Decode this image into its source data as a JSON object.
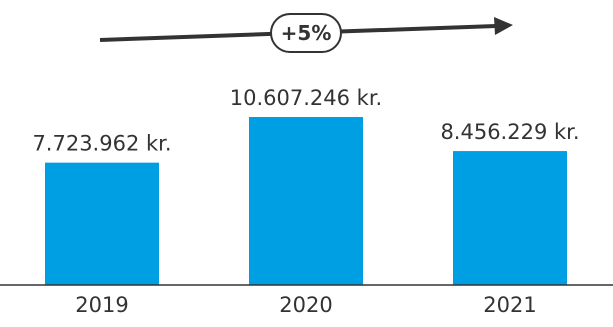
{
  "chart_data": {
    "type": "bar",
    "categories": [
      "2019",
      "2020",
      "2021"
    ],
    "values": [
      7723962,
      10607246,
      8456229
    ],
    "data_labels": [
      "7.723.962 kr.",
      "10.607.246 kr.",
      "8.456.229 kr."
    ],
    "ylim": [
      0,
      10607246
    ],
    "grid": false,
    "legend": "none",
    "bar_color": "#009FE3",
    "annotation": {
      "label": "+5%",
      "arrow_color": "#333333"
    }
  }
}
